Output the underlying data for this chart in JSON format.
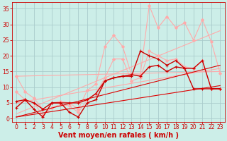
{
  "background_color": "#cceee8",
  "grid_color": "#aacccc",
  "x_label": "Vent moyen/en rafales ( km/h )",
  "x_ticks": [
    0,
    1,
    2,
    3,
    4,
    5,
    6,
    7,
    8,
    9,
    10,
    11,
    12,
    13,
    14,
    15,
    16,
    17,
    18,
    19,
    20,
    21,
    22,
    23
  ],
  "ylim": [
    -1,
    37
  ],
  "xlim": [
    -0.5,
    23.5
  ],
  "yticks": [
    0,
    5,
    10,
    15,
    20,
    25,
    30,
    35
  ],
  "lines": [
    {
      "color": "#ffaaaa",
      "linewidth": 0.8,
      "marker": null,
      "x": [
        0,
        23
      ],
      "y": [
        13.5,
        15.0
      ]
    },
    {
      "color": "#ffaaaa",
      "linewidth": 0.8,
      "marker": null,
      "x": [
        0,
        23
      ],
      "y": [
        5.0,
        16.0
      ]
    },
    {
      "color": "#ffaaaa",
      "linewidth": 0.8,
      "marker": null,
      "x": [
        0,
        23
      ],
      "y": [
        1.5,
        28.0
      ]
    },
    {
      "color": "#ffaaaa",
      "linewidth": 0.8,
      "marker": "D",
      "markersize": 2,
      "x": [
        0,
        1,
        2,
        3,
        4,
        5,
        6,
        7,
        8,
        9,
        10,
        11,
        12,
        13,
        14,
        15,
        16,
        17,
        18,
        19,
        20,
        21,
        22,
        23
      ],
      "y": [
        13.5,
        8.5,
        6.5,
        3.0,
        5.0,
        5.5,
        5.0,
        3.0,
        9.0,
        11.0,
        23.0,
        26.5,
        23.0,
        14.0,
        14.0,
        36.0,
        29.0,
        32.5,
        29.0,
        30.5,
        25.0,
        31.5,
        24.5,
        14.5
      ]
    },
    {
      "color": "#ffaaaa",
      "linewidth": 0.8,
      "marker": "D",
      "markersize": 2,
      "x": [
        0,
        1,
        2,
        3,
        4,
        5,
        6,
        7,
        8,
        9,
        10,
        11,
        12,
        13,
        14,
        15,
        16,
        17,
        18,
        19,
        20,
        21,
        22,
        23
      ],
      "y": [
        8.5,
        6.0,
        5.0,
        1.0,
        3.5,
        4.5,
        4.0,
        2.0,
        6.0,
        8.0,
        13.0,
        19.0,
        19.0,
        12.0,
        13.0,
        21.5,
        20.0,
        18.5,
        19.0,
        16.5,
        16.0,
        18.5,
        9.5,
        9.5
      ]
    },
    {
      "color": "#cc0000",
      "linewidth": 1.0,
      "marker": "+",
      "markersize": 3.5,
      "x": [
        0,
        1,
        2,
        3,
        4,
        5,
        6,
        7,
        8,
        9,
        10,
        11,
        12,
        13,
        14,
        15,
        16,
        17,
        18,
        19,
        20,
        21,
        22,
        23
      ],
      "y": [
        3.5,
        6.0,
        3.0,
        0.5,
        5.0,
        5.0,
        2.0,
        0.5,
        5.0,
        6.0,
        12.0,
        13.0,
        13.5,
        13.5,
        21.5,
        20.0,
        19.0,
        17.0,
        18.5,
        16.0,
        16.0,
        18.5,
        9.5,
        9.5
      ]
    },
    {
      "color": "#cc0000",
      "linewidth": 1.0,
      "marker": "+",
      "markersize": 3.5,
      "x": [
        0,
        1,
        2,
        3,
        4,
        5,
        6,
        7,
        8,
        9,
        10,
        11,
        12,
        13,
        14,
        15,
        16,
        17,
        18,
        19,
        20,
        21,
        22,
        23
      ],
      "y": [
        5.5,
        6.0,
        5.0,
        3.0,
        5.0,
        5.0,
        5.0,
        5.0,
        6.0,
        8.0,
        12.0,
        13.0,
        13.5,
        14.0,
        13.5,
        16.5,
        17.0,
        15.0,
        16.5,
        16.0,
        9.5,
        9.5,
        9.5,
        9.5
      ]
    },
    {
      "color": "#dd0000",
      "linewidth": 0.8,
      "marker": null,
      "x": [
        0,
        23
      ],
      "y": [
        0.5,
        17.0
      ]
    },
    {
      "color": "#dd0000",
      "linewidth": 0.8,
      "marker": null,
      "x": [
        0,
        23
      ],
      "y": [
        0.5,
        10.5
      ]
    }
  ],
  "tick_color": "#cc0000",
  "label_color": "#cc0000",
  "label_fontsize": 7,
  "tick_fontsize": 5.5
}
